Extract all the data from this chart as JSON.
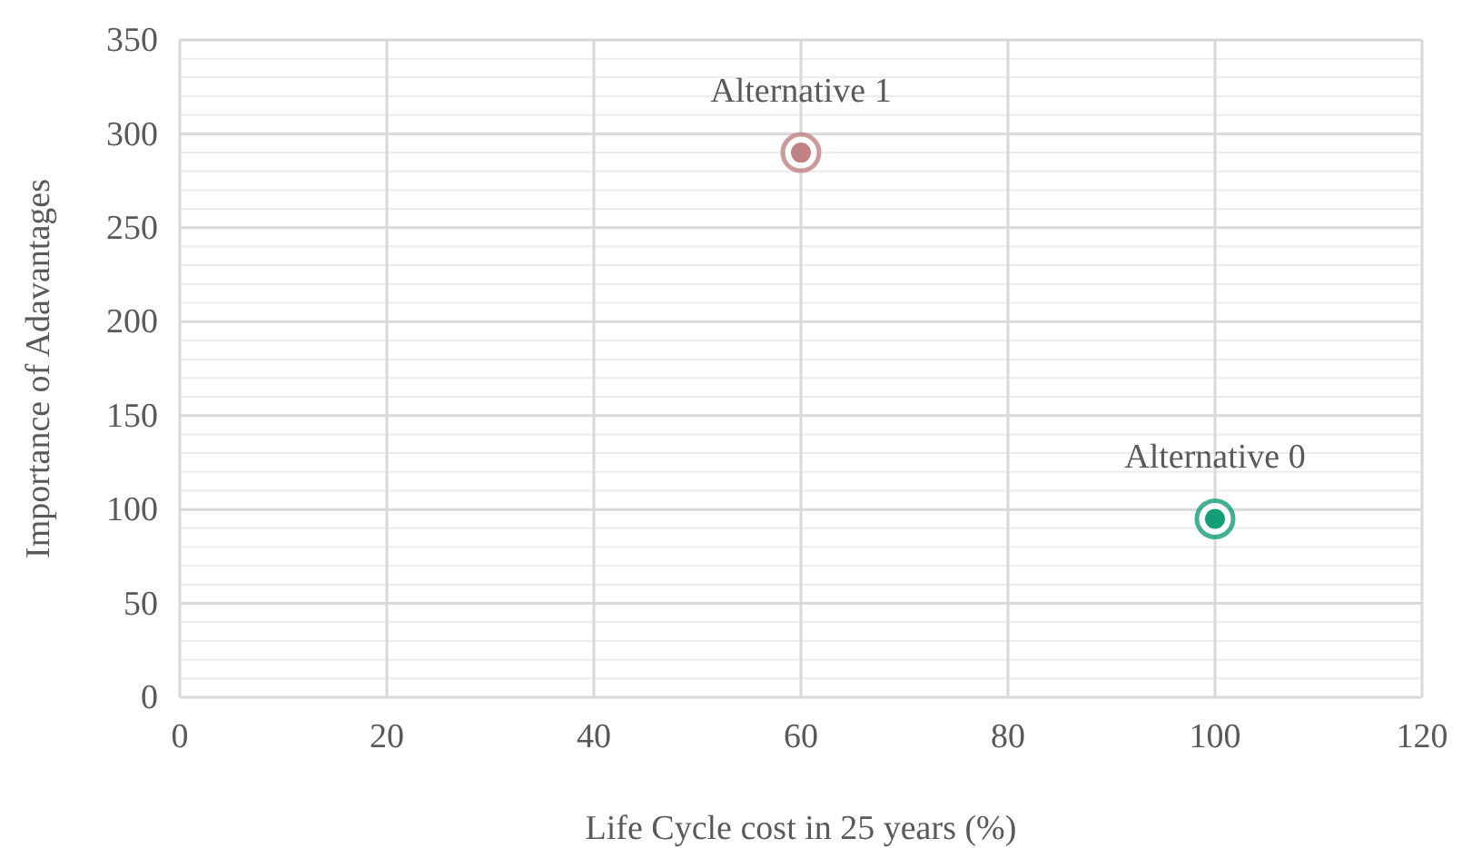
{
  "chart_data": {
    "type": "scatter",
    "xlabel": "Life Cycle  cost in 25 years (%)",
    "ylabel": "Importance of Adavantages",
    "xlim": [
      0,
      120
    ],
    "xticks": [
      0,
      20,
      40,
      60,
      80,
      100,
      120
    ],
    "ylim": [
      0,
      350
    ],
    "yticks": [
      0,
      50,
      100,
      150,
      200,
      250,
      300,
      350
    ],
    "grid": true,
    "marker": "circle",
    "series": [
      {
        "name": "Alternative 0",
        "color": "#139e78",
        "x": [
          100
        ],
        "values": [
          95
        ]
      },
      {
        "name": "Alternative 1",
        "color": "#c08282",
        "x": [
          60
        ],
        "values": [
          290
        ]
      }
    ]
  }
}
